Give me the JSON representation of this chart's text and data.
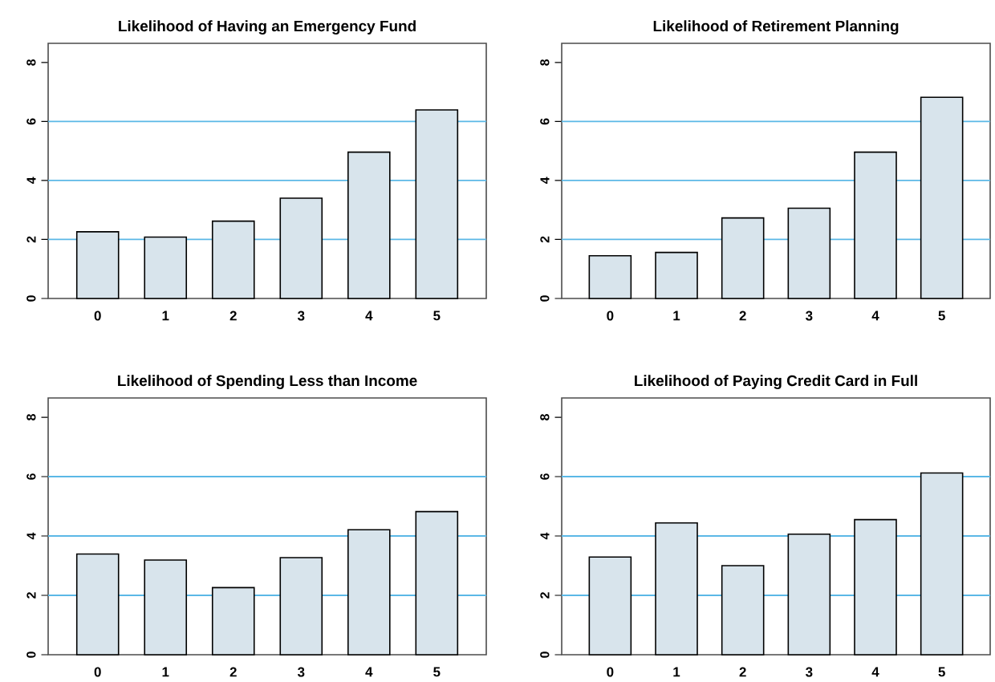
{
  "chart_data": [
    {
      "type": "bar",
      "title": "Likelihood of Having an Emergency Fund",
      "categories": [
        "0",
        "1",
        "2",
        "3",
        "4",
        "5"
      ],
      "values": [
        2.26,
        2.08,
        2.62,
        3.4,
        4.96,
        6.39
      ],
      "color": "#d8e4ec",
      "ylim": [
        0,
        8.65
      ],
      "yticks": [
        0,
        2,
        4,
        6,
        8
      ],
      "ref_lines": [
        {
          "axis": "y",
          "value": 2,
          "color": "#5bb8e6"
        },
        {
          "axis": "y",
          "value": 4,
          "color": "#5bb8e6"
        },
        {
          "axis": "y",
          "value": 6,
          "color": "#5bb8e6"
        }
      ]
    },
    {
      "type": "bar",
      "title": "Likelihood of Retirement Planning",
      "categories": [
        "0",
        "1",
        "2",
        "3",
        "4",
        "5"
      ],
      "values": [
        1.45,
        1.56,
        2.73,
        3.06,
        4.96,
        6.82
      ],
      "color": "#d8e4ec",
      "ylim": [
        0,
        8.65
      ],
      "yticks": [
        0,
        2,
        4,
        6,
        8
      ],
      "ref_lines": [
        {
          "axis": "y",
          "value": 2,
          "color": "#5bb8e6"
        },
        {
          "axis": "y",
          "value": 4,
          "color": "#5bb8e6"
        },
        {
          "axis": "y",
          "value": 6,
          "color": "#5bb8e6"
        }
      ]
    },
    {
      "type": "bar",
      "title": "Likelihood of Spending Less than Income",
      "categories": [
        "0",
        "1",
        "2",
        "3",
        "4",
        "5"
      ],
      "values": [
        3.39,
        3.19,
        2.26,
        3.27,
        4.21,
        4.82
      ],
      "color": "#d8e4ec",
      "ylim": [
        0,
        8.65
      ],
      "yticks": [
        0,
        2,
        4,
        6,
        8
      ],
      "ref_lines": [
        {
          "axis": "y",
          "value": 2,
          "color": "#5bb8e6"
        },
        {
          "axis": "y",
          "value": 4,
          "color": "#5bb8e6"
        },
        {
          "axis": "y",
          "value": 6,
          "color": "#5bb8e6"
        }
      ]
    },
    {
      "type": "bar",
      "title": "Likelihood of Paying Credit Card in Full",
      "categories": [
        "0",
        "1",
        "2",
        "3",
        "4",
        "5"
      ],
      "values": [
        3.29,
        4.44,
        3.0,
        4.06,
        4.55,
        6.12
      ],
      "color": "#d8e4ec",
      "ylim": [
        0,
        8.65
      ],
      "yticks": [
        0,
        2,
        4,
        6,
        8
      ],
      "ref_lines": [
        {
          "axis": "y",
          "value": 2,
          "color": "#5bb8e6"
        },
        {
          "axis": "y",
          "value": 4,
          "color": "#5bb8e6"
        },
        {
          "axis": "y",
          "value": 6,
          "color": "#5bb8e6"
        }
      ]
    }
  ]
}
